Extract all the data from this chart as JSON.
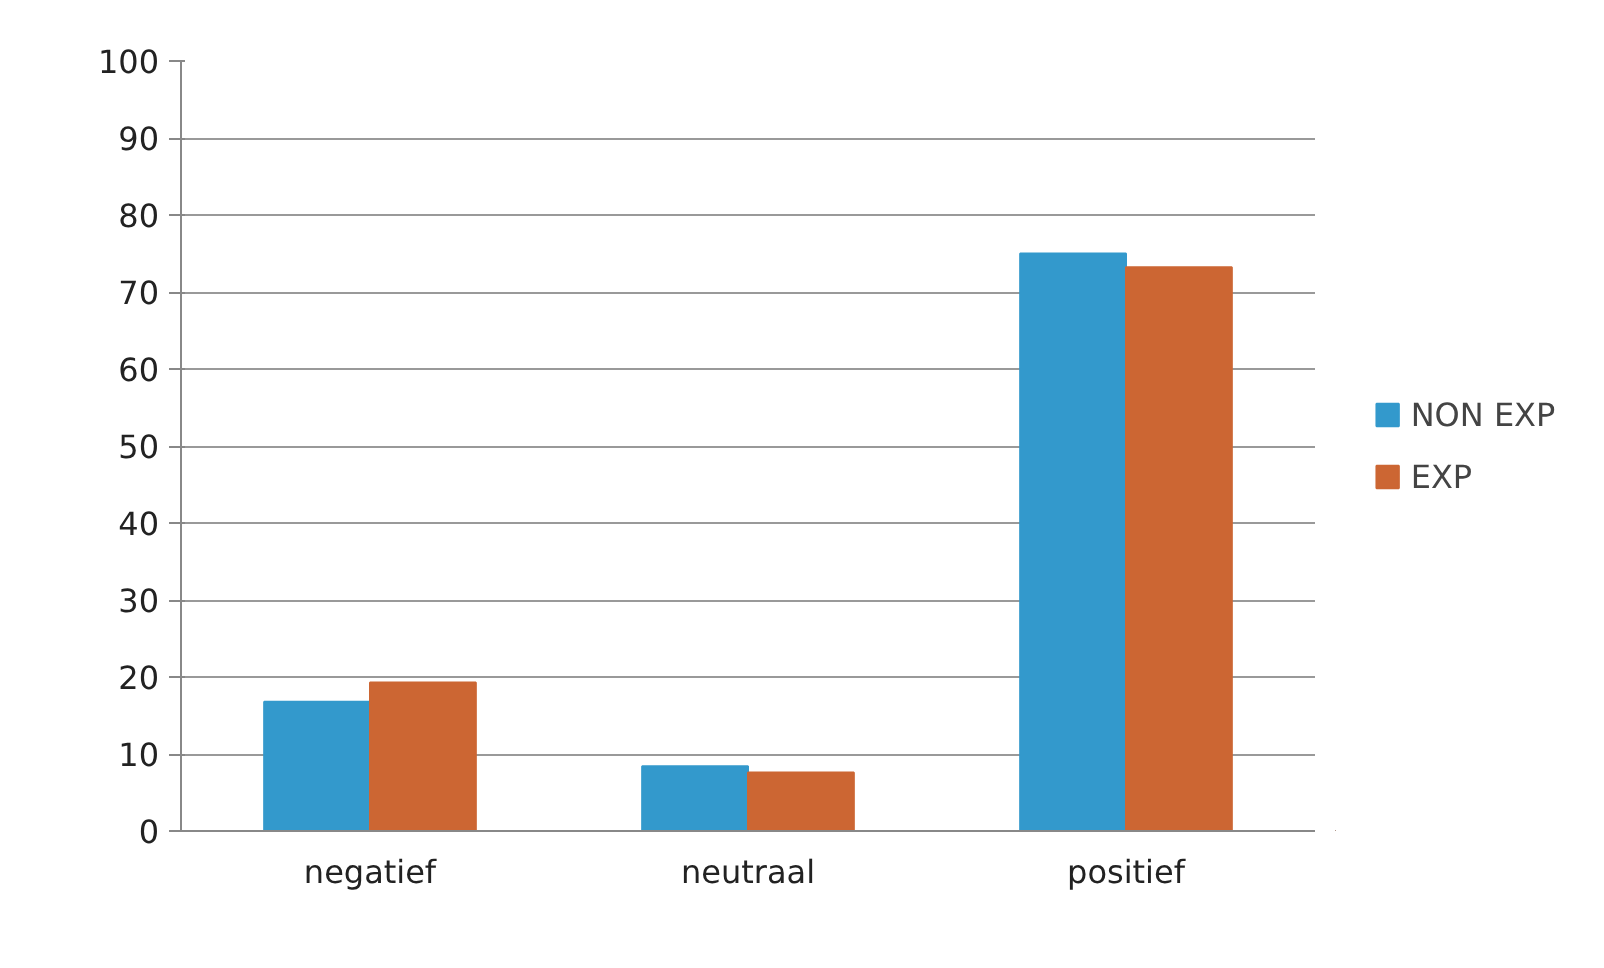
{
  "chart_data": {
    "type": "bar",
    "categories": [
      "negatief",
      "neutraal",
      "positief"
    ],
    "series": [
      {
        "name": "NON EXP",
        "color": "#3399cc",
        "values": [
          16.8,
          8.4,
          75
        ]
      },
      {
        "name": "EXP",
        "color": "#cc6633",
        "values": [
          19.3,
          7.6,
          73.2
        ]
      }
    ],
    "ylim": [
      0,
      100
    ],
    "yticks": [
      0,
      10,
      20,
      30,
      40,
      50,
      60,
      70,
      80,
      90,
      100
    ],
    "grid": "y",
    "legend": "right"
  }
}
